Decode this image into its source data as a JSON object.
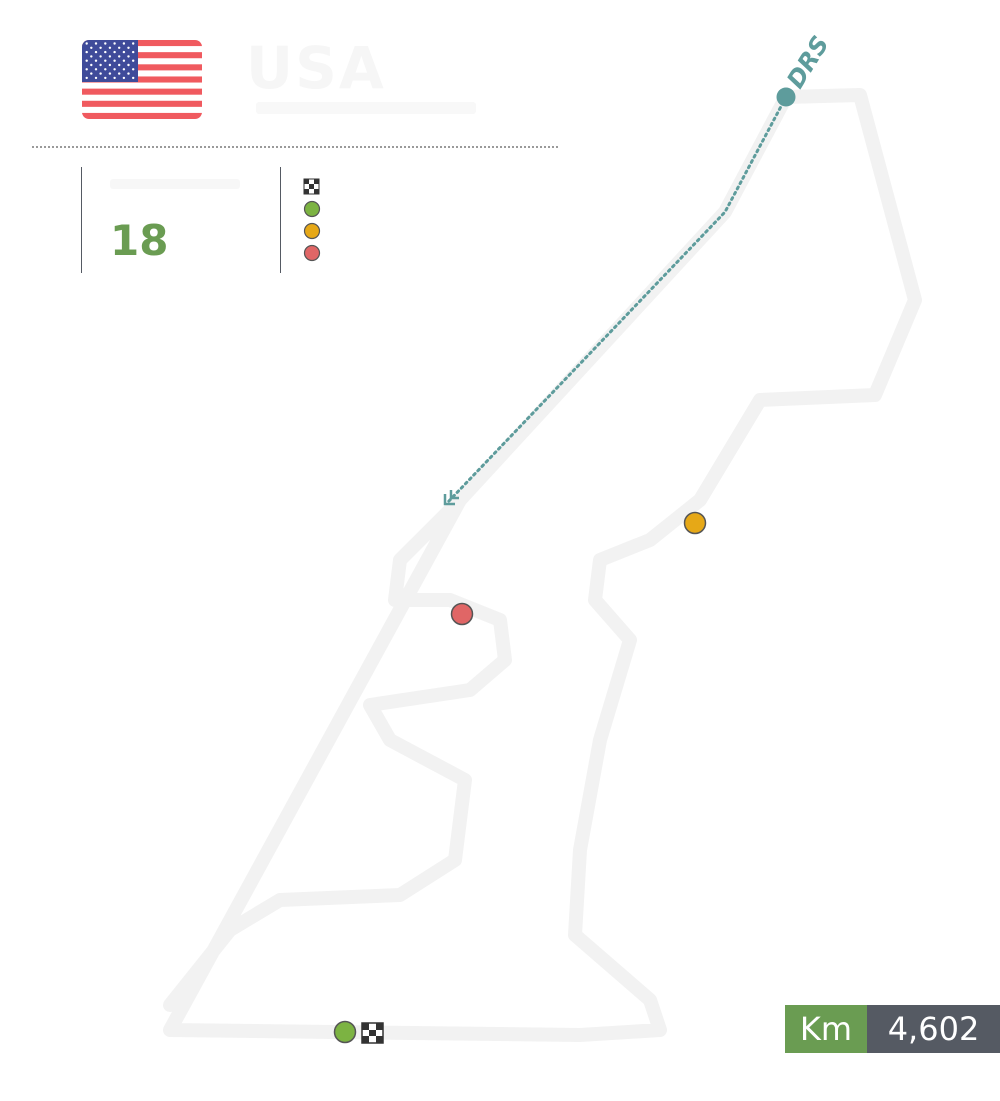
{
  "country": {
    "name": "USA",
    "flag": "usa-flag-icon"
  },
  "turns": {
    "value": "18"
  },
  "legend": {
    "items": [
      {
        "icon": "checkered-flag-icon"
      },
      {
        "icon": "green-marker-icon",
        "color": "#7cb342"
      },
      {
        "icon": "yellow-marker-icon",
        "color": "#e6a817"
      },
      {
        "icon": "red-marker-icon",
        "color": "#e06666"
      }
    ]
  },
  "drs": {
    "label": "DRS",
    "color": "#5e9c9c"
  },
  "distance": {
    "unit": "Km",
    "value": "4,602"
  },
  "colors": {
    "accent_green": "#6a9c52",
    "dark_gray": "#555a63"
  }
}
